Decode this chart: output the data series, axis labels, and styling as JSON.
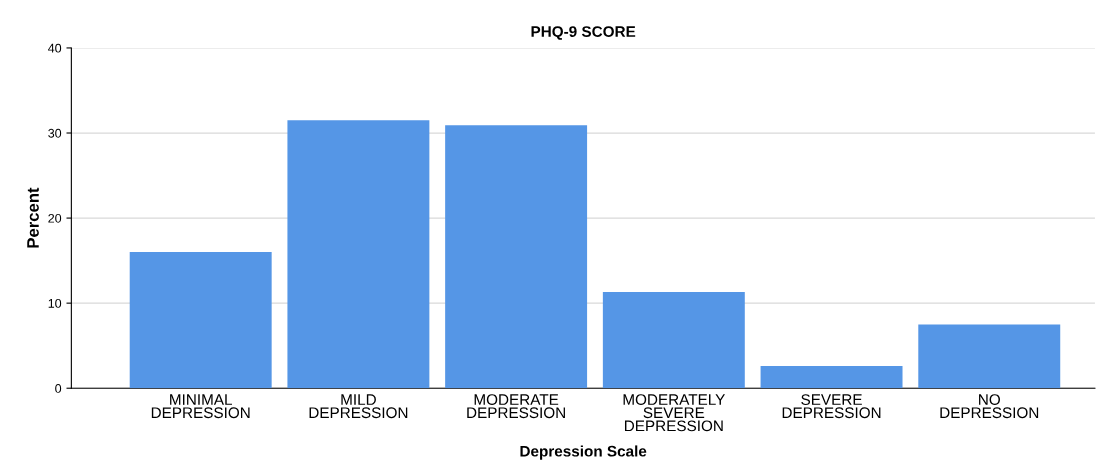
{
  "chart_data": {
    "type": "bar",
    "title": "PHQ-9 SCORE",
    "xlabel": "Depression Scale",
    "ylabel": "Percent",
    "categories": [
      "MINIMAL\nDEPRESSION",
      "MILD\nDEPRESSION",
      "MODERATE\nDEPRESSION",
      "MODERATELY\nSEVERE\nDEPRESSION",
      "SEVERE\nDEPRESSION",
      "NO\nDEPRESSION"
    ],
    "values": [
      16.0,
      31.5,
      30.9,
      11.3,
      2.6,
      7.5
    ],
    "color": "#5596e6",
    "ylim": [
      0,
      40
    ],
    "yticks": [
      0,
      10,
      20,
      30,
      40
    ],
    "grid": "y"
  }
}
